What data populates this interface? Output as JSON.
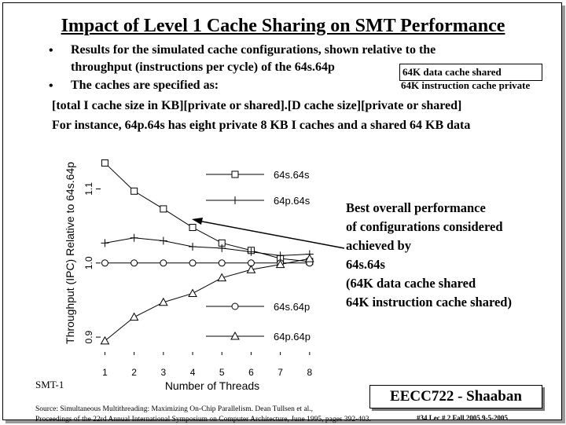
{
  "slide": {
    "title": "Impact of Level 1 Cache Sharing on SMT Performance",
    "bullet_char": "•",
    "bullet1_line1": "Results for the simulated cache configurations, shown relative to the",
    "bullet1_line2": "throughput (instructions per cycle) of the 64s.64p",
    "callout_line1": "64K data cache shared",
    "callout_line2": "64K instruction cache private",
    "bullet2": "The caches are specified as:",
    "spec_line": "[total I cache size in KB][private or shared].[D cache size][private or shared]",
    "example_line": "For instance, 64p.64s has eight private 8 KB I caches and a shared 64 KB data",
    "annotation": [
      "Best overall performance",
      "of configurations considered",
      "achieved by",
      "64s.64s",
      "(64K data cache shared",
      "64K instruction cache shared)"
    ],
    "smt_label": "SMT-1",
    "source_line1": "Source:  Simultaneous Multithreading: Maximizing On-Chip Parallelism.  Dean Tullsen et al.,",
    "source_line2": "Proceedings of the 22rd Annual International Symposium on Computer Architecture, June 1995, pages 392-403.",
    "badge": "EECC722 - Shaaban",
    "footer": "#34   Lec # 2   Fall 2005  9-5-2005"
  },
  "chart_data": {
    "type": "line",
    "xlabel": "Number of Threads",
    "ylabel": "Throughput (IPC) Relative to 64s.64p",
    "x": [
      1,
      2,
      3,
      4,
      5,
      6,
      7,
      8
    ],
    "x_ticks": [
      "1",
      "2",
      "3",
      "4",
      "5",
      "6",
      "7",
      "8"
    ],
    "y_ticks": [
      0.9,
      1.0,
      1.1
    ],
    "y_tick_labels": [
      "0.9",
      "1.0",
      "1.1"
    ],
    "ylim": [
      0.88,
      1.145
    ],
    "xlim": [
      0.8,
      8.3
    ],
    "legend_position": "right",
    "series": [
      {
        "name": "64s.64s",
        "marker": "square",
        "values": [
          1.135,
          1.097,
          1.073,
          1.048,
          1.027,
          1.017,
          1.006,
          1.002
        ]
      },
      {
        "name": "64p.64s",
        "marker": "plus",
        "values": [
          1.027,
          1.034,
          1.03,
          1.022,
          1.02,
          1.015,
          1.01,
          1.012
        ]
      },
      {
        "name": "64s.64p",
        "marker": "circle",
        "values": [
          1.0,
          1.0,
          1.0,
          1.0,
          1.0,
          1.0,
          1.0,
          1.0
        ]
      },
      {
        "name": "64p.64p",
        "marker": "triangle",
        "values": [
          0.895,
          0.927,
          0.947,
          0.959,
          0.98,
          0.991,
          0.998,
          1.006
        ]
      }
    ]
  }
}
